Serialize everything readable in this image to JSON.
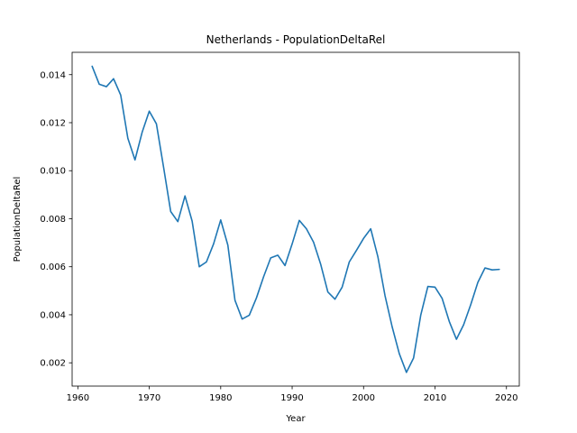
{
  "chart_data": {
    "type": "line",
    "title": "Netherlands - PopulationDeltaRel",
    "xlabel": "Year",
    "ylabel": "PopulationDeltaRel",
    "xlim": [
      1959.2,
      2021.8
    ],
    "ylim": [
      0.00103,
      0.01493
    ],
    "xticks": [
      1960,
      1970,
      1980,
      1990,
      2000,
      2010,
      2020
    ],
    "xtick_labels": [
      "1960",
      "1970",
      "1980",
      "1990",
      "2000",
      "2010",
      "2020"
    ],
    "yticks": [
      0.002,
      0.004,
      0.006,
      0.008,
      0.01,
      0.012,
      0.014
    ],
    "ytick_labels": [
      "0.002",
      "0.004",
      "0.006",
      "0.008",
      "0.010",
      "0.012",
      "0.014"
    ],
    "grid": false,
    "line_color": "#1f77b4",
    "series": [
      {
        "x": [
          1962,
          1963,
          1964,
          1965,
          1966,
          1967,
          1968,
          1969,
          1970,
          1971,
          1972,
          1973,
          1974,
          1975,
          1976,
          1977,
          1978,
          1979,
          1980,
          1981,
          1982,
          1983,
          1984,
          1985,
          1986,
          1987,
          1988,
          1989,
          1990,
          1991,
          1992,
          1993,
          1994,
          1995,
          1996,
          1997,
          1998,
          1999,
          2000,
          2001,
          2002,
          2003,
          2004,
          2005,
          2006,
          2007,
          2008,
          2009,
          2010,
          2011,
          2012,
          2013,
          2014,
          2015,
          2016,
          2017,
          2018,
          2019
        ],
        "values": [
          0.01435,
          0.0136,
          0.0135,
          0.01383,
          0.01315,
          0.01135,
          0.01045,
          0.0116,
          0.01248,
          0.01195,
          0.01015,
          0.0083,
          0.00788,
          0.00895,
          0.0079,
          0.006,
          0.0062,
          0.00695,
          0.00795,
          0.0069,
          0.0046,
          0.00382,
          0.00398,
          0.0047,
          0.00558,
          0.00637,
          0.00648,
          0.00605,
          0.00695,
          0.00793,
          0.00758,
          0.00702,
          0.0061,
          0.00495,
          0.00465,
          0.00515,
          0.0062,
          0.00668,
          0.00718,
          0.00758,
          0.00642,
          0.0048,
          0.0035,
          0.00238,
          0.0016,
          0.0022,
          0.00398,
          0.00518,
          0.00515,
          0.00468,
          0.00372,
          0.00298,
          0.00358,
          0.00442,
          0.00535,
          0.00595,
          0.00587,
          0.00589
        ]
      }
    ]
  }
}
